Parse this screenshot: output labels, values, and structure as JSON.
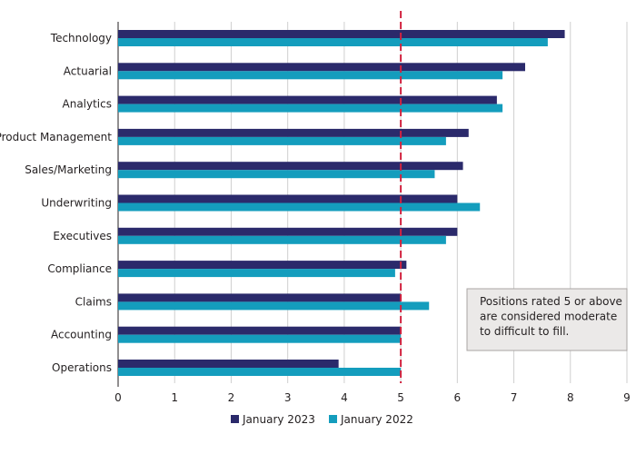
{
  "chart_data": {
    "type": "bar",
    "orientation": "horizontal",
    "title": "",
    "xlabel": "",
    "ylabel": "",
    "xlim": [
      0,
      9
    ],
    "xticks": [
      0,
      1,
      2,
      3,
      4,
      5,
      6,
      7,
      8,
      9
    ],
    "grid": "vertical",
    "legend_position": "bottom",
    "categories": [
      "Technology",
      "Actuarial",
      "Analytics",
      "Product Management",
      "Sales/Marketing",
      "Underwriting",
      "Executives",
      "Compliance",
      "Claims",
      "Accounting",
      "Operations"
    ],
    "series": [
      {
        "name": "January 2023",
        "color": "#2b2a6b",
        "values": [
          7.9,
          7.2,
          6.7,
          6.2,
          6.1,
          6.0,
          6.0,
          5.1,
          5.0,
          5.0,
          3.9
        ]
      },
      {
        "name": "January 2022",
        "color": "#149dbd",
        "values": [
          7.6,
          6.8,
          6.8,
          5.8,
          5.6,
          6.4,
          5.8,
          4.9,
          5.5,
          5.0,
          5.0
        ]
      }
    ],
    "reference_line": {
      "value": 5,
      "color": "#d2233f",
      "style": "dashed"
    },
    "annotation": {
      "lines": [
        "Positions rated 5 or above",
        "are considered moderate",
        "to difficult to fill."
      ]
    }
  }
}
